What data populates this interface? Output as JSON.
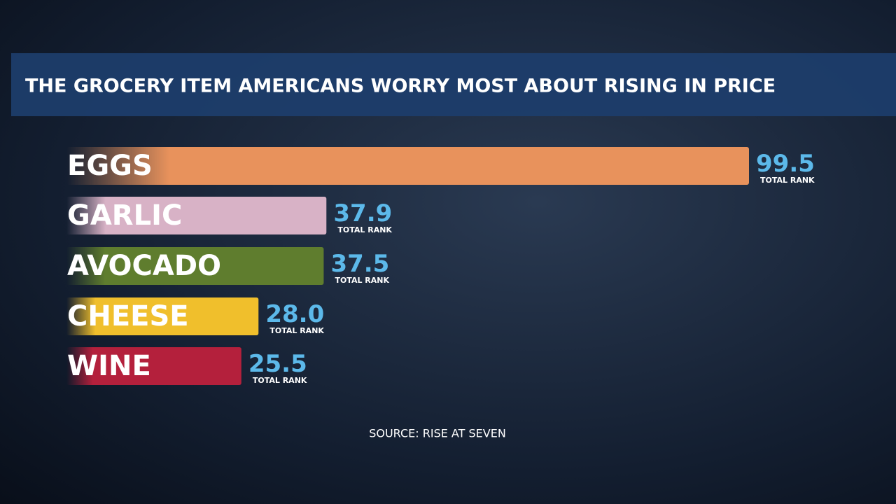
{
  "chart_data": {
    "type": "bar",
    "orientation": "horizontal",
    "title": "THE GROCERY ITEM AMERICANS WORRY MOST ABOUT RISING IN PRICE",
    "categories": [
      "EGGS",
      "GARLIC",
      "AVOCADO",
      "CHEESE",
      "WINE"
    ],
    "values": [
      99.5,
      37.9,
      37.5,
      28.0,
      25.5
    ],
    "value_labels": [
      "99.5",
      "37.9",
      "37.5",
      "28.0",
      "25.5"
    ],
    "value_caption": "TOTAL RANK",
    "colors": [
      "#e8925c",
      "#d8b2c6",
      "#5f7d2e",
      "#f0bf2c",
      "#b4203c"
    ],
    "source": "SOURCE: RISE AT SEVEN"
  }
}
